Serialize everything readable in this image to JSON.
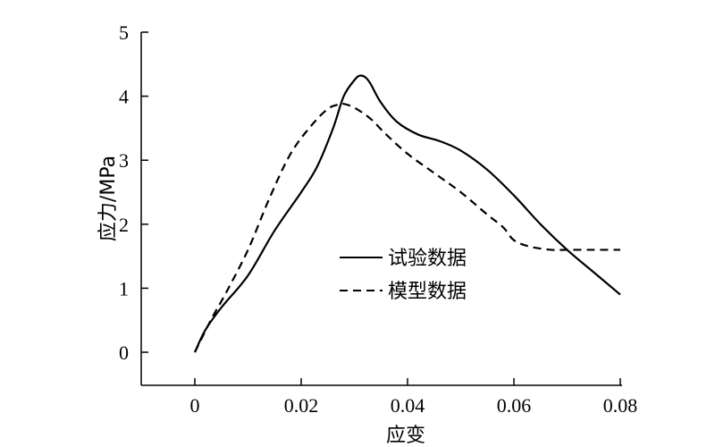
{
  "chart_data": {
    "type": "line",
    "xlabel": "应变",
    "ylabel": "应力/MPa",
    "xlim": [
      -0.01,
      0.08
    ],
    "ylim": [
      -0.5,
      5
    ],
    "xticks": [
      0,
      0.02,
      0.04,
      0.06,
      0.08
    ],
    "xtick_labels": [
      "0",
      "0.02",
      "0.04",
      "0.06",
      "0.08"
    ],
    "yticks": [
      0,
      1,
      2,
      3,
      4,
      5
    ],
    "ytick_labels": [
      "0",
      "1",
      "2",
      "3",
      "4",
      "5"
    ],
    "grid": false,
    "legend_position": "center-right",
    "series": [
      {
        "name": "试验数据",
        "style": "solid",
        "color": "#000000",
        "x": [
          0,
          0.002,
          0.005,
          0.01,
          0.015,
          0.02,
          0.023,
          0.026,
          0.028,
          0.03,
          0.031,
          0.032,
          0.033,
          0.035,
          0.038,
          0.042,
          0.046,
          0.05,
          0.055,
          0.06,
          0.065,
          0.07,
          0.075,
          0.08
        ],
        "y": [
          0,
          0.35,
          0.7,
          1.2,
          1.9,
          2.5,
          2.9,
          3.5,
          4.0,
          4.25,
          4.32,
          4.3,
          4.2,
          3.9,
          3.6,
          3.4,
          3.3,
          3.15,
          2.85,
          2.45,
          2.0,
          1.6,
          1.25,
          0.9
        ]
      },
      {
        "name": "模型数据",
        "style": "dashed",
        "color": "#000000",
        "x": [
          0,
          0.003,
          0.006,
          0.01,
          0.014,
          0.018,
          0.022,
          0.025,
          0.027,
          0.028,
          0.03,
          0.033,
          0.036,
          0.04,
          0.045,
          0.05,
          0.055,
          0.058,
          0.06,
          0.063,
          0.067,
          0.07,
          0.075,
          0.08
        ],
        "y": [
          0,
          0.5,
          0.95,
          1.6,
          2.4,
          3.1,
          3.55,
          3.8,
          3.87,
          3.88,
          3.82,
          3.65,
          3.4,
          3.1,
          2.8,
          2.5,
          2.15,
          1.95,
          1.75,
          1.65,
          1.6,
          1.6,
          1.6,
          1.6
        ]
      }
    ]
  }
}
